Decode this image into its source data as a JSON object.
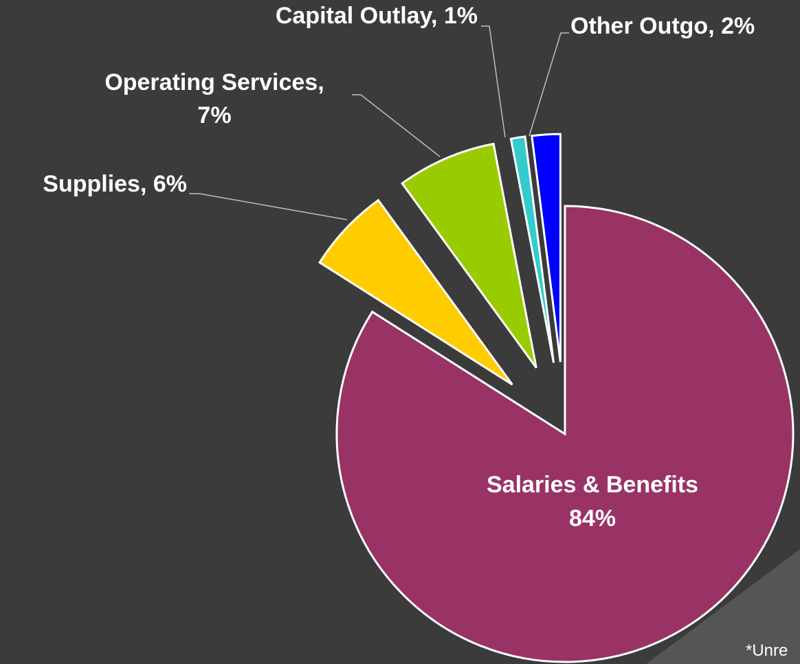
{
  "chart_data": {
    "type": "pie",
    "values": [
      84,
      6,
      7,
      1,
      2
    ],
    "value_labels": [
      "Salaries & Benefits\n84%",
      "Supplies, 6%",
      "Operating Services,\n7%",
      "Capital Outlay, 1%",
      "Other Outgo, 2%"
    ],
    "colors": [
      "#993366",
      "#ffcc00",
      "#99cc00",
      "#33cccc",
      "#0000ff"
    ],
    "footnote": "*Unre"
  }
}
